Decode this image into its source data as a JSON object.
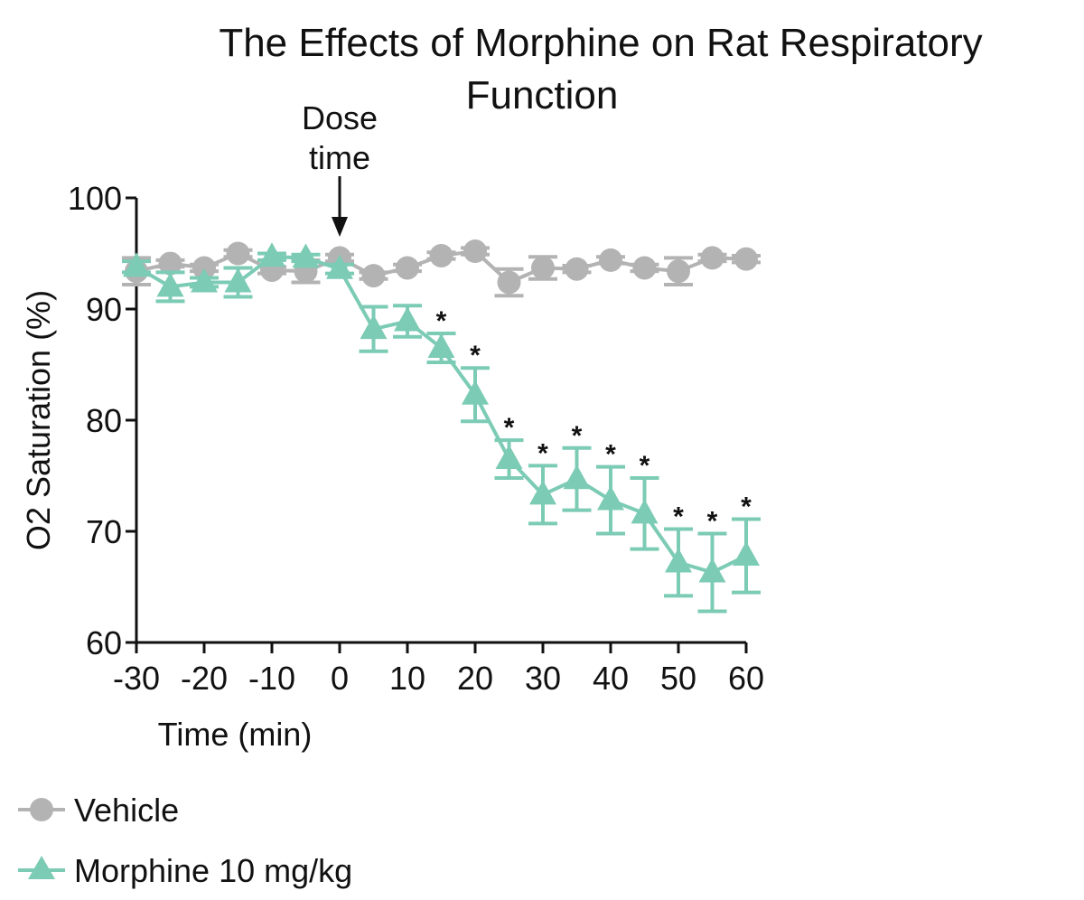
{
  "chart_data": {
    "type": "line",
    "title": "The Effects of Morphine on Rat Respiratory Function",
    "title_lines": [
      "The Effects of Morphine on Rat Respiratory",
      "Function"
    ],
    "xlabel": "Time (min)",
    "ylabel": "O2 Saturation (%)",
    "xlim": [
      -30,
      60
    ],
    "ylim": [
      60,
      100
    ],
    "xticks": [
      -30,
      -20,
      -10,
      0,
      10,
      20,
      30,
      40,
      50,
      60
    ],
    "yticks": [
      60,
      70,
      80,
      90,
      100
    ],
    "grid": false,
    "legend_position": "bottom-left",
    "annotation": {
      "lines": [
        "Dose",
        "time"
      ],
      "x": 0
    },
    "significance_marker": "*",
    "x": [
      -30,
      -25,
      -20,
      -15,
      -10,
      -5,
      0,
      5,
      10,
      15,
      20,
      25,
      30,
      35,
      40,
      45,
      50,
      55,
      60
    ],
    "series": [
      {
        "name": "Vehicle",
        "color": "#b3b3b3",
        "marker": "circle",
        "values": [
          93.4,
          94.1,
          93.7,
          95.0,
          93.5,
          93.4,
          94.6,
          93.0,
          93.7,
          94.8,
          95.2,
          92.4,
          93.7,
          93.6,
          94.4,
          93.7,
          93.4,
          94.6,
          94.5
        ],
        "errors": [
          1.2,
          0.3,
          0.3,
          0.3,
          0.3,
          1.0,
          0.3,
          0.3,
          0.3,
          0.3,
          0.3,
          1.2,
          1.0,
          0.3,
          0.3,
          0.3,
          1.2,
          0.3,
          0.3
        ],
        "significant": []
      },
      {
        "name": "Morphine 10 mg/kg",
        "color": "#7ccbb5",
        "marker": "triangle",
        "values": [
          93.8,
          92.0,
          92.4,
          92.4,
          94.7,
          94.6,
          93.6,
          88.2,
          88.9,
          86.5,
          82.3,
          76.5,
          73.3,
          74.7,
          72.8,
          71.6,
          67.2,
          66.3,
          67.8
        ],
        "errors": [
          0.5,
          1.3,
          0.4,
          1.3,
          0.3,
          0.3,
          0.4,
          2.0,
          1.4,
          1.3,
          2.4,
          1.7,
          2.6,
          2.8,
          3.0,
          3.2,
          3.0,
          3.5,
          3.3
        ],
        "significant": [
          15,
          20,
          25,
          30,
          35,
          40,
          45,
          50,
          55,
          60
        ]
      }
    ]
  }
}
